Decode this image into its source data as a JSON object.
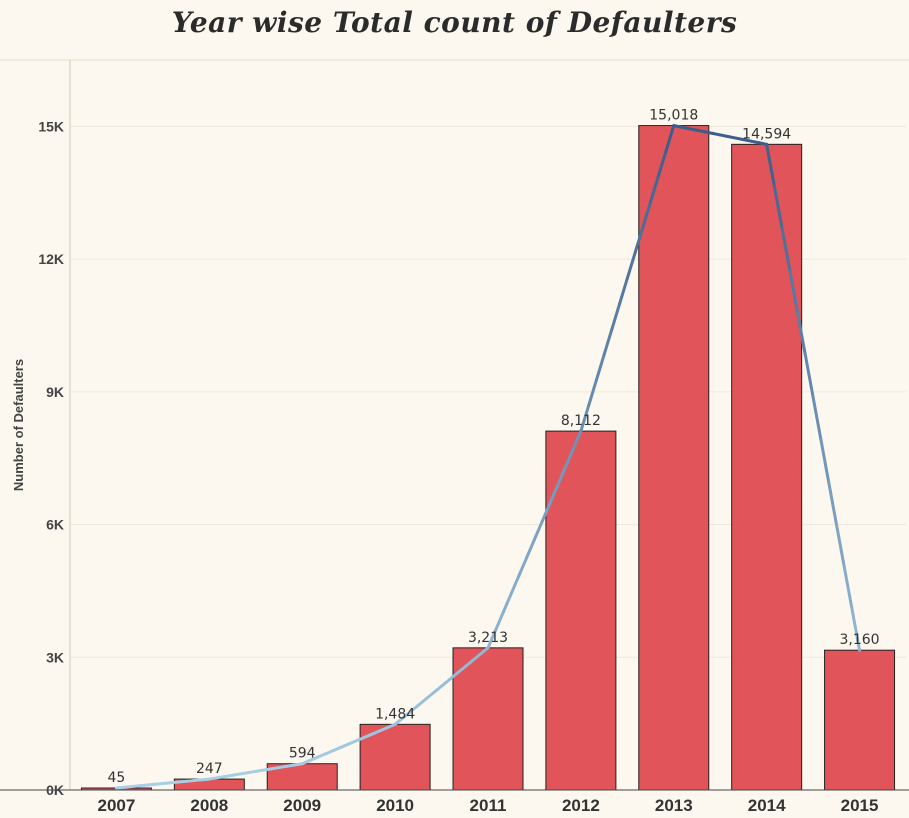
{
  "chart_data": {
    "type": "bar",
    "title": "Year wise Total count of Defaulters",
    "xlabel": "",
    "ylabel": "Number of Defaulters",
    "categories": [
      "2007",
      "2008",
      "2009",
      "2010",
      "2011",
      "2012",
      "2013",
      "2014",
      "2015"
    ],
    "values": [
      45,
      247,
      594,
      1484,
      3213,
      8112,
      15018,
      14594,
      3160
    ],
    "value_labels": [
      "45",
      "247",
      "594",
      "1,484",
      "3,213",
      "8,112",
      "15,018",
      "14,594",
      "3,160"
    ],
    "yticks": [
      0,
      3000,
      6000,
      9000,
      12000,
      15000
    ],
    "ytick_labels": [
      "0K",
      "3K",
      "6K",
      "9K",
      "12K",
      "15K"
    ],
    "ylim": [
      0,
      16500
    ],
    "grid": true,
    "overlay_line": {
      "type": "line",
      "values": [
        45,
        247,
        594,
        1484,
        3213,
        8112,
        15018,
        14594,
        3160
      ]
    },
    "colors": {
      "bar": "#e0545a",
      "bar_border": "#222222",
      "line_low": "#a8d0e6",
      "line_high": "#3b5c8a",
      "background": "#fdf8ef",
      "grid": "#efe9dc"
    }
  }
}
